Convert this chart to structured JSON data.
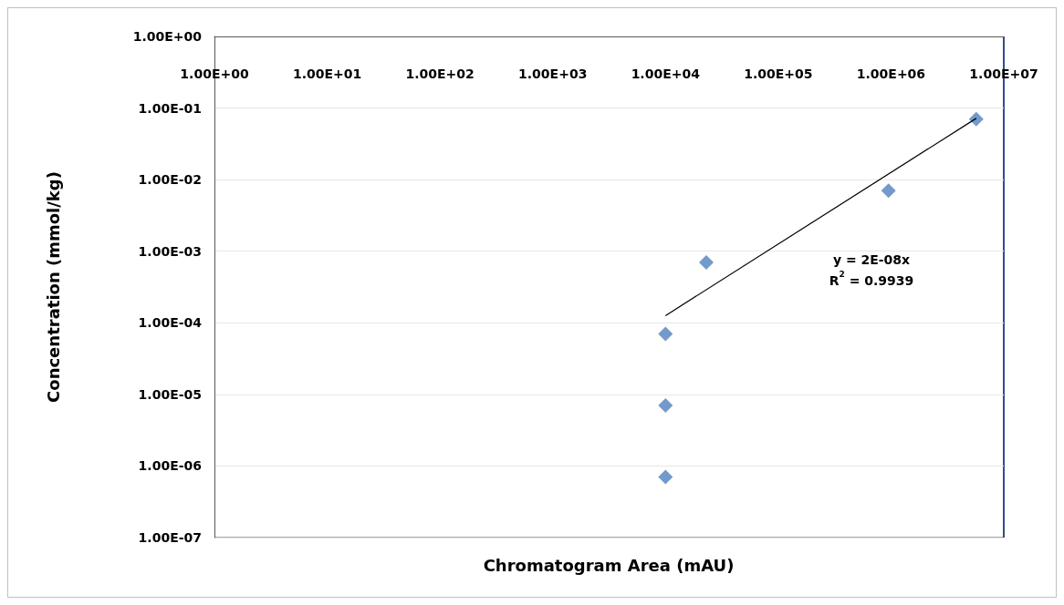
{
  "chart_data": {
    "type": "scatter",
    "xlabel": "Chromatogram Area (mAU)",
    "ylabel": "Concentration (mmol/kg)",
    "log": "xy",
    "grid": "y",
    "marker": "diamond",
    "xlim": [
      1,
      10000000
    ],
    "xticks": [
      {
        "value": 1,
        "label": "1.00E+00"
      },
      {
        "value": 10,
        "label": "1.00E+01"
      },
      {
        "value": 100,
        "label": "1.00E+02"
      },
      {
        "value": 1000,
        "label": "1.00E+03"
      },
      {
        "value": 10000,
        "label": "1.00E+04"
      },
      {
        "value": 100000,
        "label": "1.00E+05"
      },
      {
        "value": 1000000,
        "label": "1.00E+06"
      },
      {
        "value": 10000000,
        "label": "1.00E+07"
      }
    ],
    "ylim": [
      1e-07,
      1
    ],
    "yticks": [
      {
        "value": 1e-07,
        "label": "1.00E-07"
      },
      {
        "value": 1e-06,
        "label": "1.00E-06"
      },
      {
        "value": 1e-05,
        "label": "1.00E-05"
      },
      {
        "value": 0.0001,
        "label": "1.00E-04"
      },
      {
        "value": 0.001,
        "label": "1.00E-03"
      },
      {
        "value": 0.01,
        "label": "1.00E-02"
      },
      {
        "value": 0.1,
        "label": "1.00E-01"
      },
      {
        "value": 1,
        "label": "1.00E+00"
      }
    ],
    "series": [
      {
        "color": "#4f81bd",
        "x": [
          10000,
          10000,
          10000,
          23000,
          950000,
          5700000
        ],
        "values": [
          7e-07,
          7e-06,
          7e-05,
          0.0007,
          0.007,
          0.07
        ]
      },
      {
        "type": "line",
        "color": "#000000",
        "marker": "none",
        "x": [
          10000,
          5700000
        ],
        "values": [
          0.000126,
          0.0718
        ]
      }
    ],
    "annotations": [
      "y = 2E-08x",
      "R$^{2}$ = 0.9939"
    ]
  }
}
